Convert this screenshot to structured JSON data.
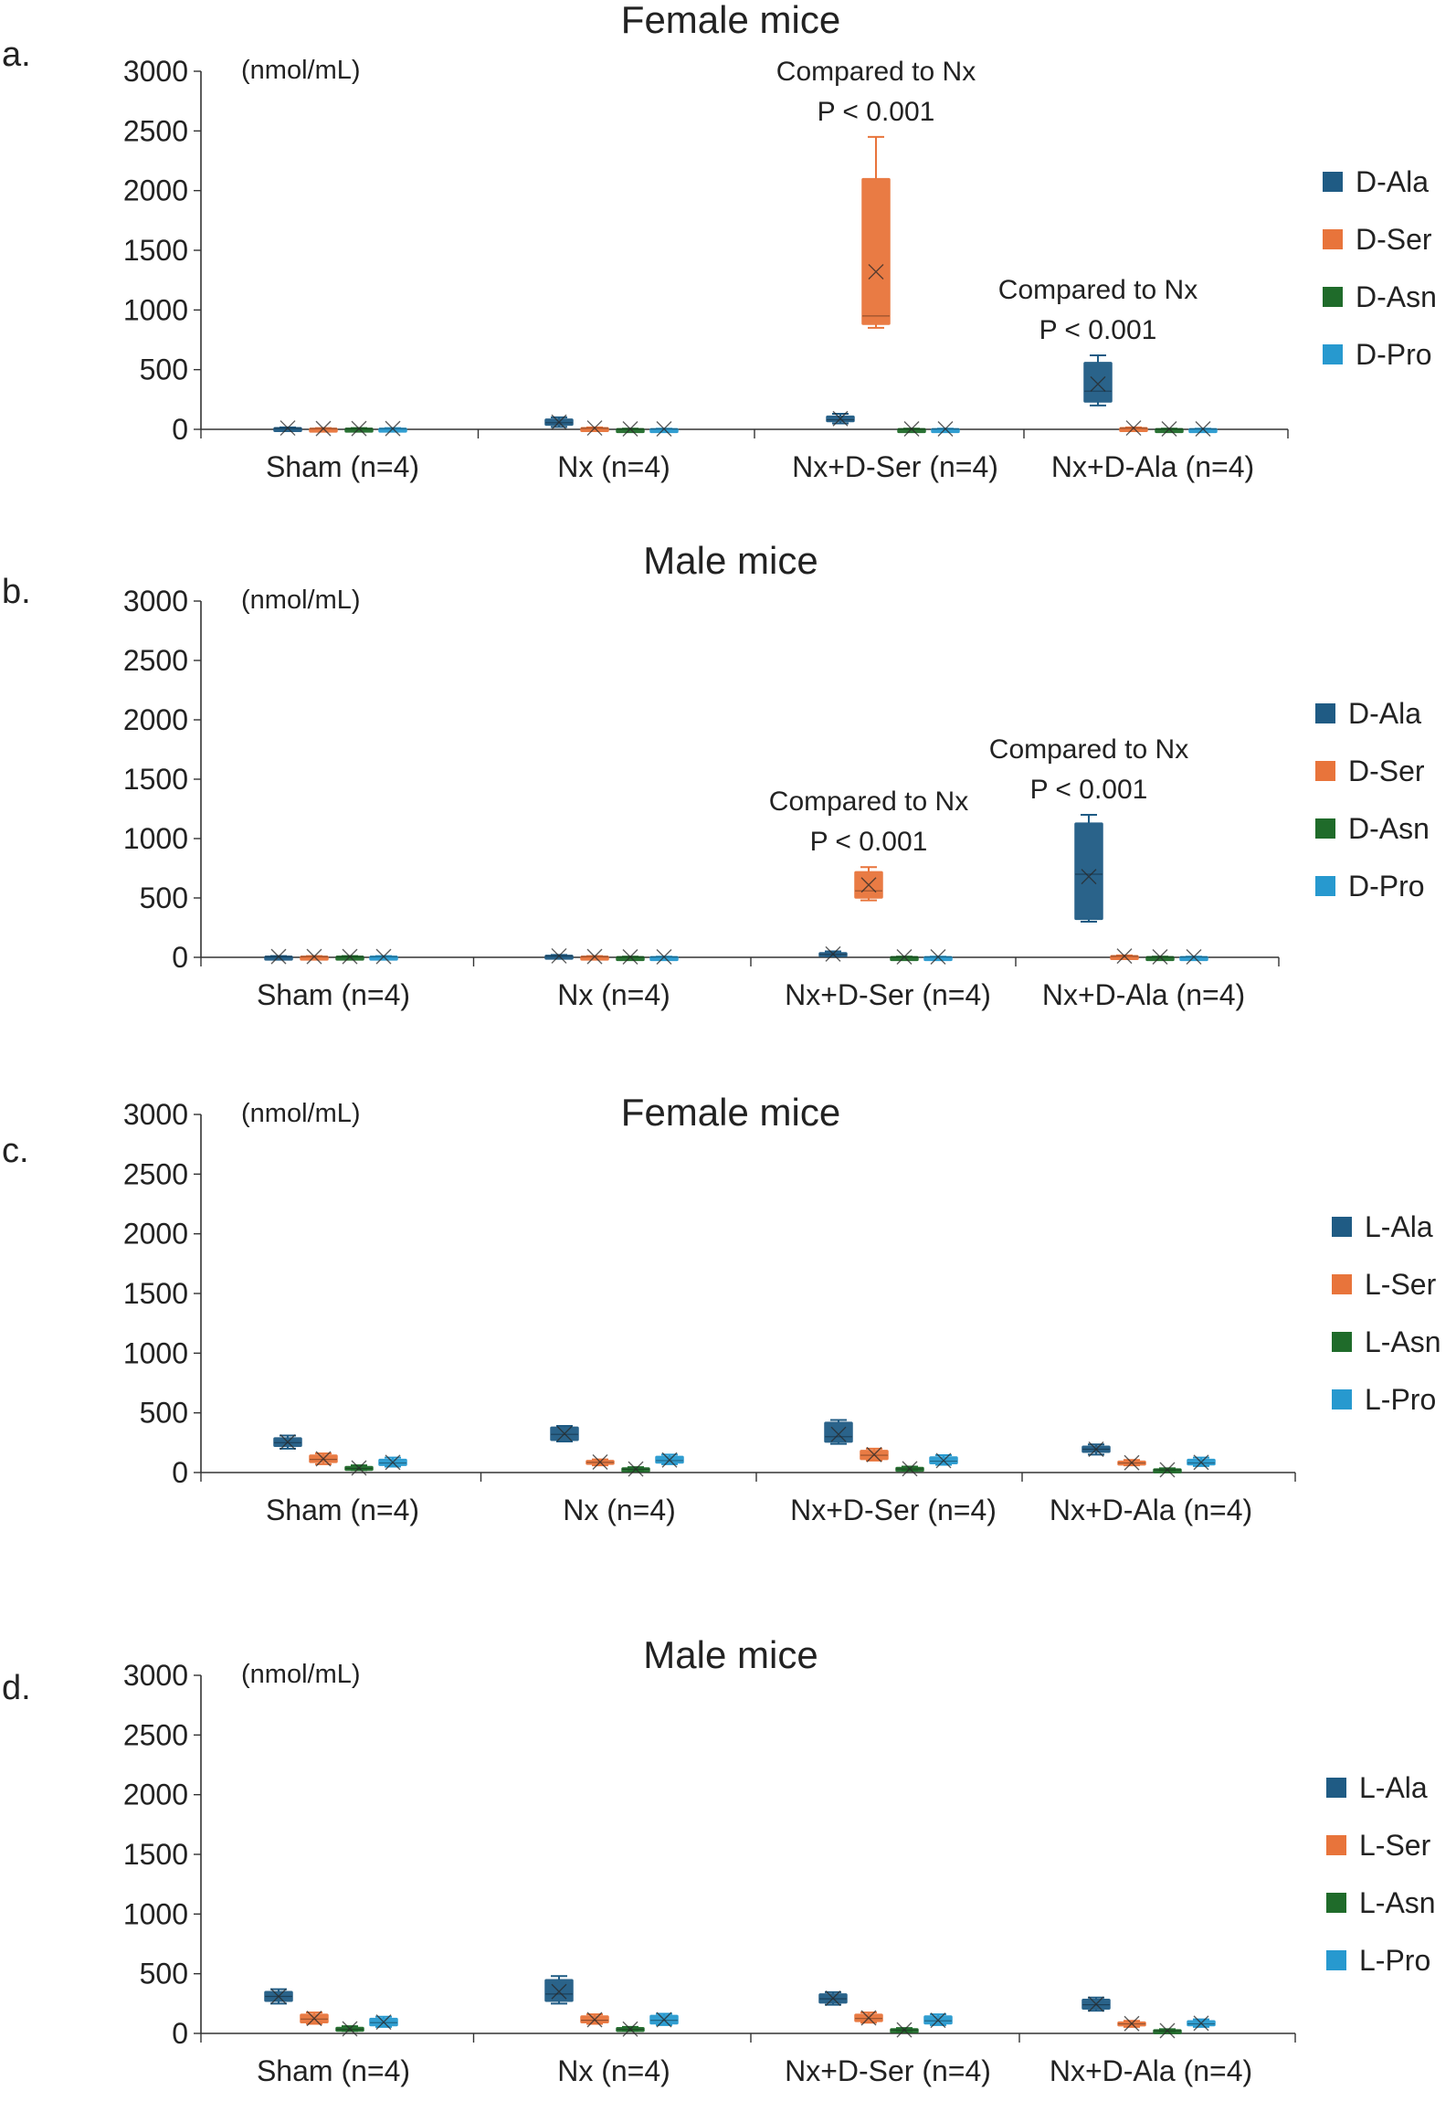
{
  "figure": {
    "colors": {
      "ala": "#1f5b84",
      "ser": "#e8743b",
      "asn": "#1f6b2a",
      "pro": "#2799cf",
      "axis": "#333333"
    },
    "icons": {
      "box": "box-icon",
      "mean": "mean-x-icon",
      "legend": "legend-swatch-icon"
    }
  },
  "chart_data": [
    {
      "panel_label": "a.",
      "type": "box",
      "title": "Female mice",
      "units": "(nmol/mL)",
      "ylim": [
        0,
        3000
      ],
      "yticks": [
        0,
        500,
        1000,
        1500,
        2000,
        2500,
        3000
      ],
      "categories": [
        "Sham (n=4)",
        "Nx (n=4)",
        "Nx+D-Ser (n=4)",
        "Nx+D-Ala (n=4)"
      ],
      "legend": [
        "D-Ala",
        "D-Ser",
        "D-Asn",
        "D-Pro"
      ],
      "series": [
        {
          "name": "D-Ala",
          "color": "#1f5b84",
          "boxes": [
            {
              "min": 5,
              "q1": 8,
              "median": 10,
              "q3": 13,
              "max": 16,
              "mean": 11
            },
            {
              "min": 20,
              "q1": 35,
              "median": 55,
              "q3": 85,
              "max": 100,
              "mean": 60
            },
            {
              "min": 50,
              "q1": 65,
              "median": 80,
              "q3": 110,
              "max": 130,
              "mean": 90
            },
            {
              "min": 200,
              "q1": 230,
              "median": 320,
              "q3": 560,
              "max": 620,
              "mean": 380
            }
          ]
        },
        {
          "name": "D-Ser",
          "color": "#e8743b",
          "boxes": [
            {
              "min": 3,
              "q1": 5,
              "median": 7,
              "q3": 9,
              "max": 11,
              "mean": 7
            },
            {
              "min": 5,
              "q1": 8,
              "median": 10,
              "q3": 13,
              "max": 16,
              "mean": 11
            },
            {
              "min": 850,
              "q1": 880,
              "median": 950,
              "q3": 2100,
              "max": 2450,
              "mean": 1320
            },
            {
              "min": 5,
              "q1": 8,
              "median": 10,
              "q3": 13,
              "max": 16,
              "mean": 11
            }
          ]
        },
        {
          "name": "D-Asn",
          "color": "#1f6b2a",
          "boxes": [
            {
              "min": 3,
              "q1": 5,
              "median": 7,
              "q3": 9,
              "max": 11,
              "mean": 7
            },
            {
              "min": 2,
              "q1": 3,
              "median": 4,
              "q3": 5,
              "max": 6,
              "mean": 4
            },
            {
              "min": 2,
              "q1": 3,
              "median": 4,
              "q3": 5,
              "max": 6,
              "mean": 4
            },
            {
              "min": 2,
              "q1": 3,
              "median": 4,
              "q3": 5,
              "max": 6,
              "mean": 4
            }
          ]
        },
        {
          "name": "D-Pro",
          "color": "#2799cf",
          "boxes": [
            {
              "min": 3,
              "q1": 5,
              "median": 7,
              "q3": 9,
              "max": 11,
              "mean": 7
            },
            {
              "min": 2,
              "q1": 3,
              "median": 4,
              "q3": 5,
              "max": 6,
              "mean": 4
            },
            {
              "min": 2,
              "q1": 3,
              "median": 4,
              "q3": 5,
              "max": 6,
              "mean": 4
            },
            {
              "min": 2,
              "q1": 3,
              "median": 4,
              "q3": 5,
              "max": 6,
              "mean": 4
            }
          ]
        }
      ],
      "annotations": [
        {
          "category": 2,
          "series": 1,
          "line1": "Compared to Nx",
          "line2": "P < 0.001"
        },
        {
          "category": 3,
          "series": 0,
          "line1": "Compared to Nx",
          "line2": "P < 0.001"
        }
      ]
    },
    {
      "panel_label": "b.",
      "type": "box",
      "title": "Male mice",
      "units": "(nmol/mL)",
      "ylim": [
        0,
        3000
      ],
      "yticks": [
        0,
        500,
        1000,
        1500,
        2000,
        2500,
        3000
      ],
      "categories": [
        "Sham (n=4)",
        "Nx (n=4)",
        "Nx+D-Ser (n=4)",
        "Nx+D-Ala (n=4)"
      ],
      "legend": [
        "D-Ala",
        "D-Ser",
        "D-Asn",
        "D-Pro"
      ],
      "series": [
        {
          "name": "D-Ala",
          "color": "#1f5b84",
          "boxes": [
            {
              "min": 3,
              "q1": 5,
              "median": 7,
              "q3": 9,
              "max": 11,
              "mean": 7
            },
            {
              "min": 5,
              "q1": 8,
              "median": 12,
              "q3": 16,
              "max": 20,
              "mean": 12
            },
            {
              "min": 10,
              "q1": 18,
              "median": 25,
              "q3": 38,
              "max": 50,
              "mean": 28
            },
            {
              "min": 300,
              "q1": 320,
              "median": 700,
              "q3": 1130,
              "max": 1200,
              "mean": 680
            }
          ]
        },
        {
          "name": "D-Ser",
          "color": "#e8743b",
          "boxes": [
            {
              "min": 3,
              "q1": 5,
              "median": 7,
              "q3": 9,
              "max": 11,
              "mean": 7
            },
            {
              "min": 3,
              "q1": 5,
              "median": 7,
              "q3": 9,
              "max": 11,
              "mean": 7
            },
            {
              "min": 480,
              "q1": 500,
              "median": 560,
              "q3": 720,
              "max": 760,
              "mean": 610
            },
            {
              "min": 5,
              "q1": 8,
              "median": 10,
              "q3": 13,
              "max": 16,
              "mean": 11
            }
          ]
        },
        {
          "name": "D-Asn",
          "color": "#1f6b2a",
          "boxes": [
            {
              "min": 3,
              "q1": 5,
              "median": 7,
              "q3": 9,
              "max": 11,
              "mean": 7
            },
            {
              "min": 2,
              "q1": 3,
              "median": 4,
              "q3": 5,
              "max": 6,
              "mean": 4
            },
            {
              "min": 2,
              "q1": 3,
              "median": 4,
              "q3": 5,
              "max": 6,
              "mean": 4
            },
            {
              "min": 2,
              "q1": 3,
              "median": 4,
              "q3": 5,
              "max": 6,
              "mean": 4
            }
          ]
        },
        {
          "name": "D-Pro",
          "color": "#2799cf",
          "boxes": [
            {
              "min": 3,
              "q1": 5,
              "median": 7,
              "q3": 9,
              "max": 11,
              "mean": 7
            },
            {
              "min": 2,
              "q1": 3,
              "median": 4,
              "q3": 5,
              "max": 6,
              "mean": 4
            },
            {
              "min": 2,
              "q1": 3,
              "median": 4,
              "q3": 5,
              "max": 6,
              "mean": 4
            },
            {
              "min": 2,
              "q1": 3,
              "median": 4,
              "q3": 5,
              "max": 6,
              "mean": 4
            }
          ]
        }
      ],
      "annotations": [
        {
          "category": 2,
          "series": 1,
          "line1": "Compared to Nx",
          "line2": "P < 0.001"
        },
        {
          "category": 3,
          "series": 0,
          "line1": "Compared to Nx",
          "line2": "P < 0.001"
        }
      ]
    },
    {
      "panel_label": "c.",
      "type": "box",
      "title": "Female mice",
      "units": "(nmol/mL)",
      "ylim": [
        0,
        3000
      ],
      "yticks": [
        0,
        500,
        1000,
        1500,
        2000,
        2500,
        3000
      ],
      "categories": [
        "Sham (n=4)",
        "Nx (n=4)",
        "Nx+D-Ser (n=4)",
        "Nx+D-Ala (n=4)"
      ],
      "legend": [
        "L-Ala",
        "L-Ser",
        "L-Asn",
        "L-Pro"
      ],
      "series": [
        {
          "name": "L-Ala",
          "color": "#1f5b84",
          "boxes": [
            {
              "min": 200,
              "q1": 220,
              "median": 250,
              "q3": 290,
              "max": 310,
              "mean": 255
            },
            {
              "min": 260,
              "q1": 270,
              "median": 320,
              "q3": 380,
              "max": 390,
              "mean": 325
            },
            {
              "min": 240,
              "q1": 255,
              "median": 300,
              "q3": 420,
              "max": 440,
              "mean": 320
            },
            {
              "min": 150,
              "q1": 170,
              "median": 195,
              "q3": 220,
              "max": 235,
              "mean": 195
            }
          ]
        },
        {
          "name": "L-Ser",
          "color": "#e8743b",
          "boxes": [
            {
              "min": 70,
              "q1": 85,
              "median": 110,
              "q3": 145,
              "max": 160,
              "mean": 115
            },
            {
              "min": 60,
              "q1": 70,
              "median": 85,
              "q3": 100,
              "max": 110,
              "mean": 88
            },
            {
              "min": 100,
              "q1": 110,
              "median": 145,
              "q3": 185,
              "max": 200,
              "mean": 150
            },
            {
              "min": 60,
              "q1": 70,
              "median": 80,
              "q3": 95,
              "max": 105,
              "mean": 82
            }
          ]
        },
        {
          "name": "L-Asn",
          "color": "#1f6b2a",
          "boxes": [
            {
              "min": 20,
              "q1": 25,
              "median": 35,
              "q3": 50,
              "max": 60,
              "mean": 38
            },
            {
              "min": 15,
              "q1": 20,
              "median": 28,
              "q3": 38,
              "max": 45,
              "mean": 30
            },
            {
              "min": 18,
              "q1": 22,
              "median": 30,
              "q3": 42,
              "max": 50,
              "mean": 32
            },
            {
              "min": 12,
              "q1": 16,
              "median": 22,
              "q3": 30,
              "max": 35,
              "mean": 23
            }
          ]
        },
        {
          "name": "L-Pro",
          "color": "#2799cf",
          "boxes": [
            {
              "min": 50,
              "q1": 60,
              "median": 80,
              "q3": 110,
              "max": 125,
              "mean": 85
            },
            {
              "min": 70,
              "q1": 80,
              "median": 100,
              "q3": 135,
              "max": 150,
              "mean": 105
            },
            {
              "min": 65,
              "q1": 75,
              "median": 95,
              "q3": 130,
              "max": 145,
              "mean": 100
            },
            {
              "min": 55,
              "q1": 65,
              "median": 80,
              "q3": 110,
              "max": 125,
              "mean": 85
            }
          ]
        }
      ],
      "annotations": []
    },
    {
      "panel_label": "d.",
      "type": "box",
      "title": "Male mice",
      "units": "(nmol/mL)",
      "ylim": [
        0,
        3000
      ],
      "yticks": [
        0,
        500,
        1000,
        1500,
        2000,
        2500,
        3000
      ],
      "categories": [
        "Sham (n=4)",
        "Nx (n=4)",
        "Nx+D-Ser (n=4)",
        "Nx+D-Ala (n=4)"
      ],
      "legend": [
        "L-Ala",
        "L-Ser",
        "L-Asn",
        "L-Pro"
      ],
      "series": [
        {
          "name": "L-Ala",
          "color": "#1f5b84",
          "boxes": [
            {
              "min": 250,
              "q1": 270,
              "median": 310,
              "q3": 350,
              "max": 370,
              "mean": 310
            },
            {
              "min": 250,
              "q1": 270,
              "median": 330,
              "q3": 450,
              "max": 480,
              "mean": 350
            },
            {
              "min": 240,
              "q1": 255,
              "median": 290,
              "q3": 330,
              "max": 345,
              "mean": 295
            },
            {
              "min": 190,
              "q1": 205,
              "median": 240,
              "q3": 285,
              "max": 300,
              "mean": 245
            }
          ]
        },
        {
          "name": "L-Ser",
          "color": "#e8743b",
          "boxes": [
            {
              "min": 80,
              "q1": 90,
              "median": 120,
              "q3": 160,
              "max": 175,
              "mean": 125
            },
            {
              "min": 80,
              "q1": 90,
              "median": 110,
              "q3": 145,
              "max": 160,
              "mean": 115
            },
            {
              "min": 90,
              "q1": 100,
              "median": 125,
              "q3": 160,
              "max": 175,
              "mean": 130
            },
            {
              "min": 55,
              "q1": 65,
              "median": 80,
              "q3": 95,
              "max": 105,
              "mean": 82
            }
          ]
        },
        {
          "name": "L-Asn",
          "color": "#1f6b2a",
          "boxes": [
            {
              "min": 20,
              "q1": 25,
              "median": 35,
              "q3": 50,
              "max": 60,
              "mean": 38
            },
            {
              "min": 20,
              "q1": 25,
              "median": 35,
              "q3": 48,
              "max": 55,
              "mean": 36
            },
            {
              "min": 15,
              "q1": 20,
              "median": 28,
              "q3": 38,
              "max": 45,
              "mean": 30
            },
            {
              "min": 12,
              "q1": 16,
              "median": 22,
              "q3": 30,
              "max": 35,
              "mean": 23
            }
          ]
        },
        {
          "name": "L-Pro",
          "color": "#2799cf",
          "boxes": [
            {
              "min": 55,
              "q1": 65,
              "median": 90,
              "q3": 125,
              "max": 140,
              "mean": 95
            },
            {
              "min": 70,
              "q1": 80,
              "median": 110,
              "q3": 150,
              "max": 165,
              "mean": 115
            },
            {
              "min": 70,
              "q1": 80,
              "median": 105,
              "q3": 145,
              "max": 160,
              "mean": 110
            },
            {
              "min": 55,
              "q1": 65,
              "median": 80,
              "q3": 105,
              "max": 118,
              "mean": 85
            }
          ]
        }
      ],
      "annotations": []
    }
  ]
}
